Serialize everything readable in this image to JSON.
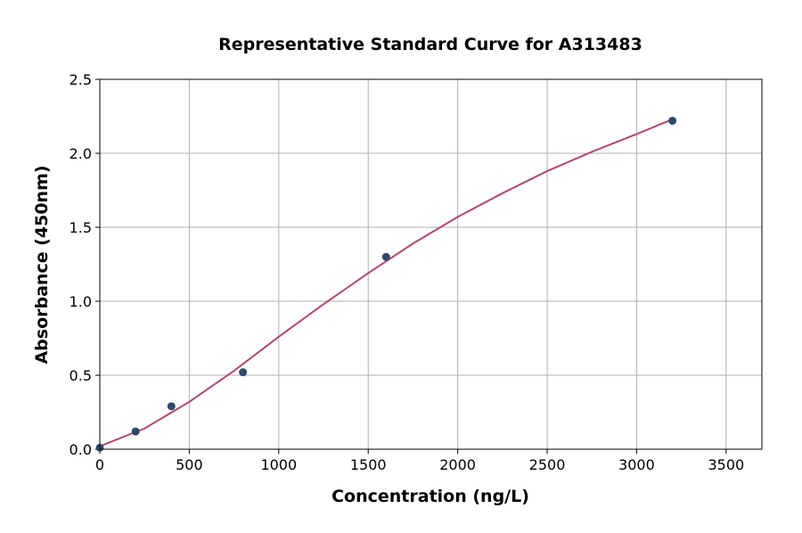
{
  "chart_data": {
    "type": "scatter",
    "title": "Representative Standard Curve for A313483",
    "xlabel": "Concentration (ng/L)",
    "ylabel": "Absorbance (450nm)",
    "xlim": [
      0,
      3700
    ],
    "ylim": [
      0,
      2.5
    ],
    "xticks": [
      0,
      500,
      1000,
      1500,
      2000,
      2500,
      3000,
      3500
    ],
    "yticks": [
      "0.0",
      "0.5",
      "1.0",
      "1.5",
      "2.0",
      "2.5"
    ],
    "grid": true,
    "points": {
      "x": [
        0,
        200,
        400,
        800,
        1600,
        3200
      ],
      "y": [
        0.01,
        0.12,
        0.29,
        0.52,
        1.3,
        2.22
      ],
      "color": "#2e4a6b"
    },
    "fit_curve": {
      "x": [
        0,
        250,
        500,
        750,
        1000,
        1250,
        1500,
        1750,
        2000,
        2250,
        2500,
        2750,
        3000,
        3200
      ],
      "y": [
        0.02,
        0.14,
        0.32,
        0.53,
        0.76,
        0.98,
        1.19,
        1.39,
        1.57,
        1.73,
        1.88,
        2.01,
        2.13,
        2.23
      ],
      "color": "#b5476b"
    }
  }
}
